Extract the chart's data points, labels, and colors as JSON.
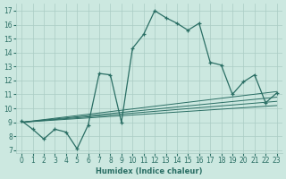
{
  "xlabel": "Humidex (Indice chaleur)",
  "background_color": "#cce8e0",
  "grid_color": "#aaccc4",
  "line_color": "#2a6e64",
  "xlim": [
    -0.5,
    23.5
  ],
  "ylim": [
    6.8,
    17.5
  ],
  "xticks": [
    0,
    1,
    2,
    3,
    4,
    5,
    6,
    7,
    8,
    9,
    10,
    11,
    12,
    13,
    14,
    15,
    16,
    17,
    18,
    19,
    20,
    21,
    22,
    23
  ],
  "yticks": [
    7,
    8,
    9,
    10,
    11,
    12,
    13,
    14,
    15,
    16,
    17
  ],
  "main_x": [
    0,
    1,
    2,
    3,
    4,
    5,
    6,
    7,
    8,
    9,
    10,
    11,
    12,
    13,
    14,
    15,
    16,
    17,
    18,
    19,
    20,
    21,
    22,
    23
  ],
  "main_y": [
    9.1,
    8.5,
    7.8,
    8.5,
    8.3,
    7.1,
    8.8,
    12.5,
    12.4,
    9.0,
    14.3,
    15.3,
    17.0,
    16.5,
    16.1,
    15.6,
    16.1,
    13.3,
    13.1,
    11.0,
    11.9,
    12.4,
    10.4,
    11.1
  ],
  "ref_lines": [
    {
      "x": [
        0,
        23
      ],
      "y": [
        9.0,
        11.2
      ]
    },
    {
      "x": [
        0,
        23
      ],
      "y": [
        9.0,
        10.8
      ]
    },
    {
      "x": [
        0,
        23
      ],
      "y": [
        9.0,
        10.5
      ]
    },
    {
      "x": [
        0,
        23
      ],
      "y": [
        9.0,
        10.2
      ]
    }
  ]
}
